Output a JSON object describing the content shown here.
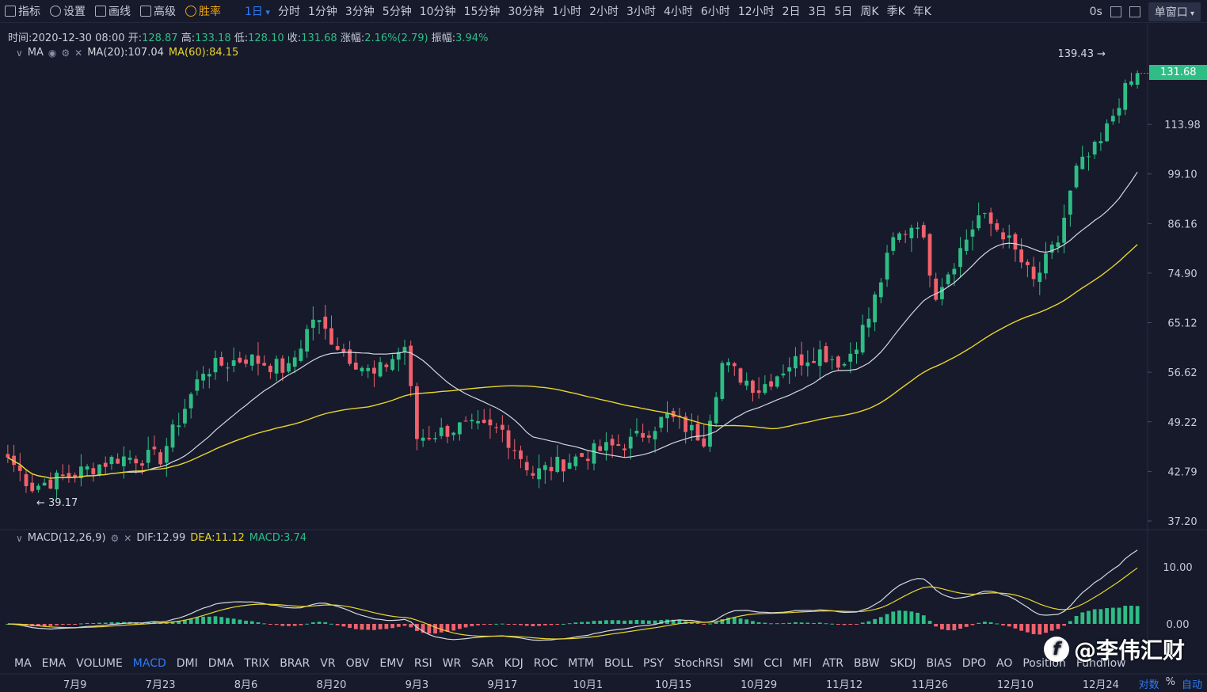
{
  "toolbar": {
    "tools": [
      {
        "label": "指标",
        "icon": "chart-icon"
      },
      {
        "label": "设置",
        "icon": "gear-icon"
      },
      {
        "label": "画线",
        "icon": "pen-icon"
      },
      {
        "label": "高级",
        "icon": "briefcase-icon"
      },
      {
        "label": "胜率",
        "icon": "coin-icon"
      }
    ],
    "periods": [
      "1日",
      "分时",
      "1分钟",
      "3分钟",
      "5分钟",
      "10分钟",
      "15分钟",
      "30分钟",
      "1小时",
      "2小时",
      "3小时",
      "4小时",
      "6小时",
      "12小时",
      "2日",
      "3日",
      "5日",
      "周K",
      "季K",
      "年K"
    ],
    "active_period": "1日",
    "countdown": "0s",
    "window_mode": "单窗口"
  },
  "info": {
    "time_label": "时间:",
    "time": "2020-12-30 08:00",
    "open_label": "开:",
    "open": "128.87",
    "high_label": "高:",
    "high": "133.18",
    "low_label": "低:",
    "low": "128.10",
    "close_label": "收:",
    "close": "131.68",
    "change_label": "涨幅:",
    "change": "2.16%(2.79)",
    "amp_label": "振幅:",
    "amp": "3.94%"
  },
  "main_legend": {
    "name": "MA",
    "ma20": "MA(20):107.04",
    "ma60": "MA(60):84.15"
  },
  "macd_legend": {
    "name": "MACD(12,26,9)",
    "dif": "DIF:12.99",
    "dea": "DEA:11.12",
    "macd": "MACD:3.74"
  },
  "current_price": "131.68",
  "max_label": "139.43",
  "min_label": "39.17",
  "indicators": [
    "MA",
    "EMA",
    "VOLUME",
    "MACD",
    "DMI",
    "DMA",
    "TRIX",
    "BRAR",
    "VR",
    "OBV",
    "EMV",
    "RSI",
    "WR",
    "SAR",
    "KDJ",
    "ROC",
    "MTM",
    "BOLL",
    "PSY",
    "StochRSI",
    "SMI",
    "CCI",
    "MFI",
    "ATR",
    "BBW",
    "SKDJ",
    "BIAS",
    "DPO",
    "AO",
    "Position",
    "Fundflow"
  ],
  "active_indicator": "MACD",
  "axis_options": {
    "log": "对数",
    "pct": "%",
    "auto": "自动"
  },
  "watermark": "@李伟汇财",
  "colors": {
    "up": "#2ebd85",
    "down": "#f0616d",
    "ma20": "#d5d8e0",
    "ma60": "#e9d52b",
    "accent": "#2f7bf5",
    "bg": "#161a2b"
  },
  "chart_data": {
    "type": "candlestick",
    "scale": "log",
    "price_ticks": [
      "139.43",
      "113.98",
      "99.10",
      "86.16",
      "74.90",
      "65.12",
      "56.62",
      "49.22",
      "42.79",
      "37.20"
    ],
    "macd_ticks": [
      "10.00",
      "0.00"
    ],
    "x_ticks": [
      "7月9",
      "7月23",
      "8月6",
      "8月20",
      "9月3",
      "9月17",
      "10月1",
      "10月15",
      "10月29",
      "11月12",
      "11月26",
      "12月10",
      "12月24"
    ],
    "date_range": [
      "2020-06-28",
      "2020-12-30"
    ],
    "close_anchors": [
      {
        "date": "06-28",
        "close": 44.5
      },
      {
        "date": "07-02",
        "close": 41.0
      },
      {
        "date": "07-09",
        "close": 42.5
      },
      {
        "date": "07-16",
        "close": 44.5
      },
      {
        "date": "07-23",
        "close": 44.5
      },
      {
        "date": "07-30",
        "close": 57.0
      },
      {
        "date": "08-06",
        "close": 59.0
      },
      {
        "date": "08-13",
        "close": 57.0
      },
      {
        "date": "08-17",
        "close": 66.0
      },
      {
        "date": "08-22",
        "close": 60.0
      },
      {
        "date": "08-27",
        "close": 56.0
      },
      {
        "date": "09-01",
        "close": 61.0
      },
      {
        "date": "09-03",
        "close": 47.0
      },
      {
        "date": "09-10",
        "close": 48.5
      },
      {
        "date": "09-17",
        "close": 48.0
      },
      {
        "date": "09-22",
        "close": 42.5
      },
      {
        "date": "10-01",
        "close": 45.0
      },
      {
        "date": "10-08",
        "close": 46.5
      },
      {
        "date": "10-14",
        "close": 50.0
      },
      {
        "date": "10-20",
        "close": 47.0
      },
      {
        "date": "10-23",
        "close": 58.0
      },
      {
        "date": "10-29",
        "close": 54.0
      },
      {
        "date": "11-03",
        "close": 58.0
      },
      {
        "date": "11-08",
        "close": 60.0
      },
      {
        "date": "11-12",
        "close": 58.0
      },
      {
        "date": "11-16",
        "close": 66.0
      },
      {
        "date": "11-20",
        "close": 82.0
      },
      {
        "date": "11-24",
        "close": 87.0
      },
      {
        "date": "11-27",
        "close": 71.0
      },
      {
        "date": "12-01",
        "close": 80.0
      },
      {
        "date": "12-04",
        "close": 88.0
      },
      {
        "date": "12-08",
        "close": 84.0
      },
      {
        "date": "12-13",
        "close": 73.0
      },
      {
        "date": "12-17",
        "close": 82.0
      },
      {
        "date": "12-20",
        "close": 100.0
      },
      {
        "date": "12-24",
        "close": 108.0
      },
      {
        "date": "12-27",
        "close": 122.0
      },
      {
        "date": "12-30",
        "close": 131.68
      }
    ],
    "ma20_last": 107.04,
    "ma60_last": 84.15,
    "macd_last": {
      "dif": 12.99,
      "dea": 11.12,
      "macd": 3.74
    }
  }
}
